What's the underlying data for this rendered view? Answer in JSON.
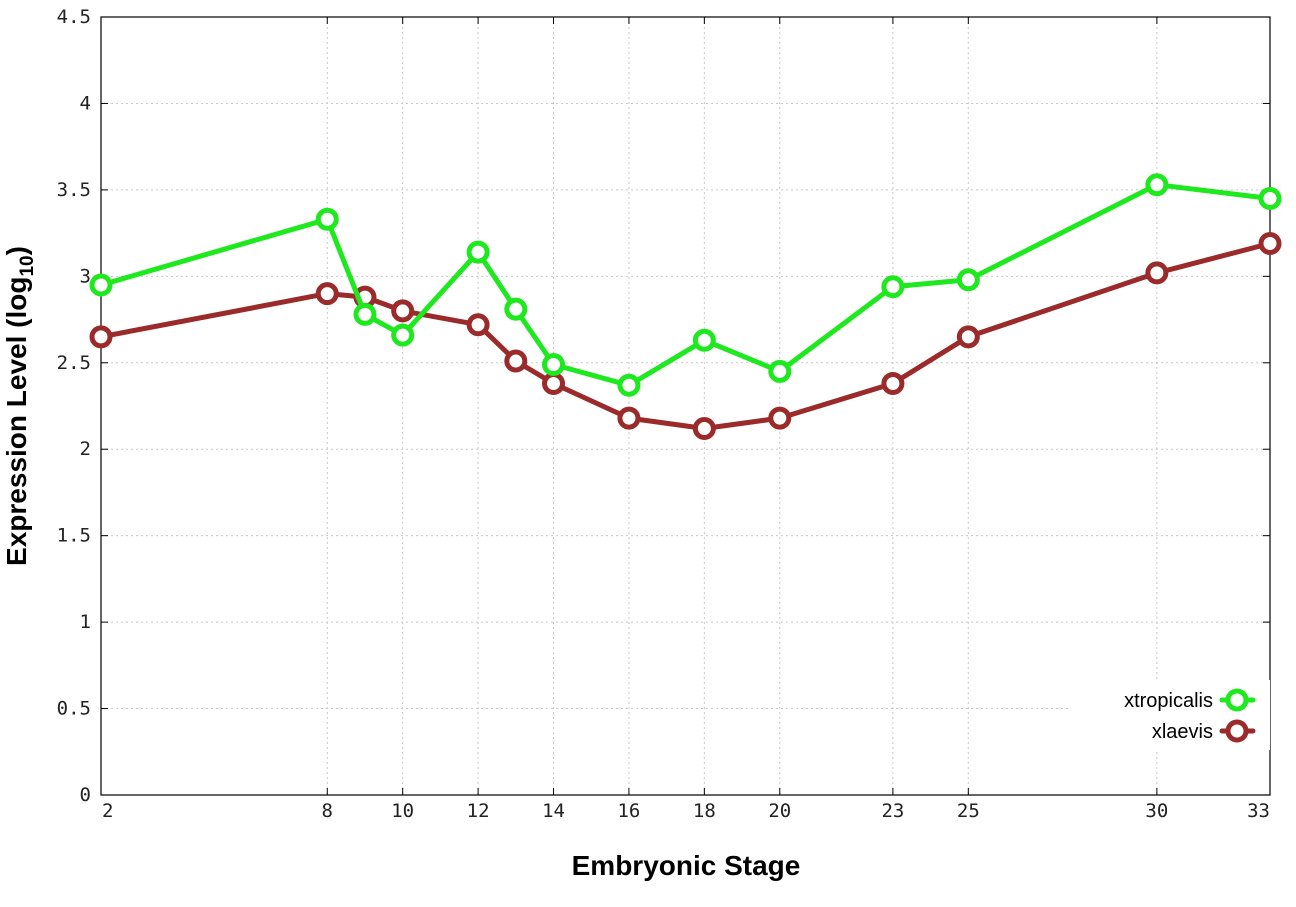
{
  "chart_data": {
    "type": "line",
    "title": "",
    "xlabel": "Embryonic Stage",
    "ylabel": {
      "base": "Expression Level (log",
      "subscript": "10",
      "suffix": ")"
    },
    "x_ticks": [
      2,
      8,
      10,
      12,
      14,
      16,
      18,
      20,
      23,
      25,
      30,
      33
    ],
    "y_ticks": [
      "0",
      "0.5",
      "1",
      "1.5",
      "2",
      "2.5",
      "3",
      "3.5",
      "4",
      "4.5"
    ],
    "xlim": [
      2,
      33
    ],
    "ylim": [
      0,
      4.5
    ],
    "grid": true,
    "legend_position": "bottom-right",
    "series": [
      {
        "name": "xtropicalis",
        "color": "#1ee81e",
        "x": [
          2,
          8,
          9,
          10,
          12,
          13,
          14,
          16,
          18,
          20,
          23,
          25,
          30,
          33
        ],
        "y": [
          2.95,
          3.33,
          2.78,
          2.66,
          3.14,
          2.81,
          2.49,
          2.37,
          2.63,
          2.45,
          2.94,
          2.98,
          3.53,
          3.45
        ]
      },
      {
        "name": "xlaevis",
        "color": "#9b2a2a",
        "x": [
          2,
          8,
          9,
          10,
          12,
          13,
          14,
          16,
          18,
          20,
          23,
          25,
          30,
          33
        ],
        "y": [
          2.65,
          2.9,
          2.88,
          2.8,
          2.72,
          2.51,
          2.38,
          2.18,
          2.12,
          2.18,
          2.38,
          2.65,
          3.02,
          3.19
        ]
      }
    ]
  }
}
